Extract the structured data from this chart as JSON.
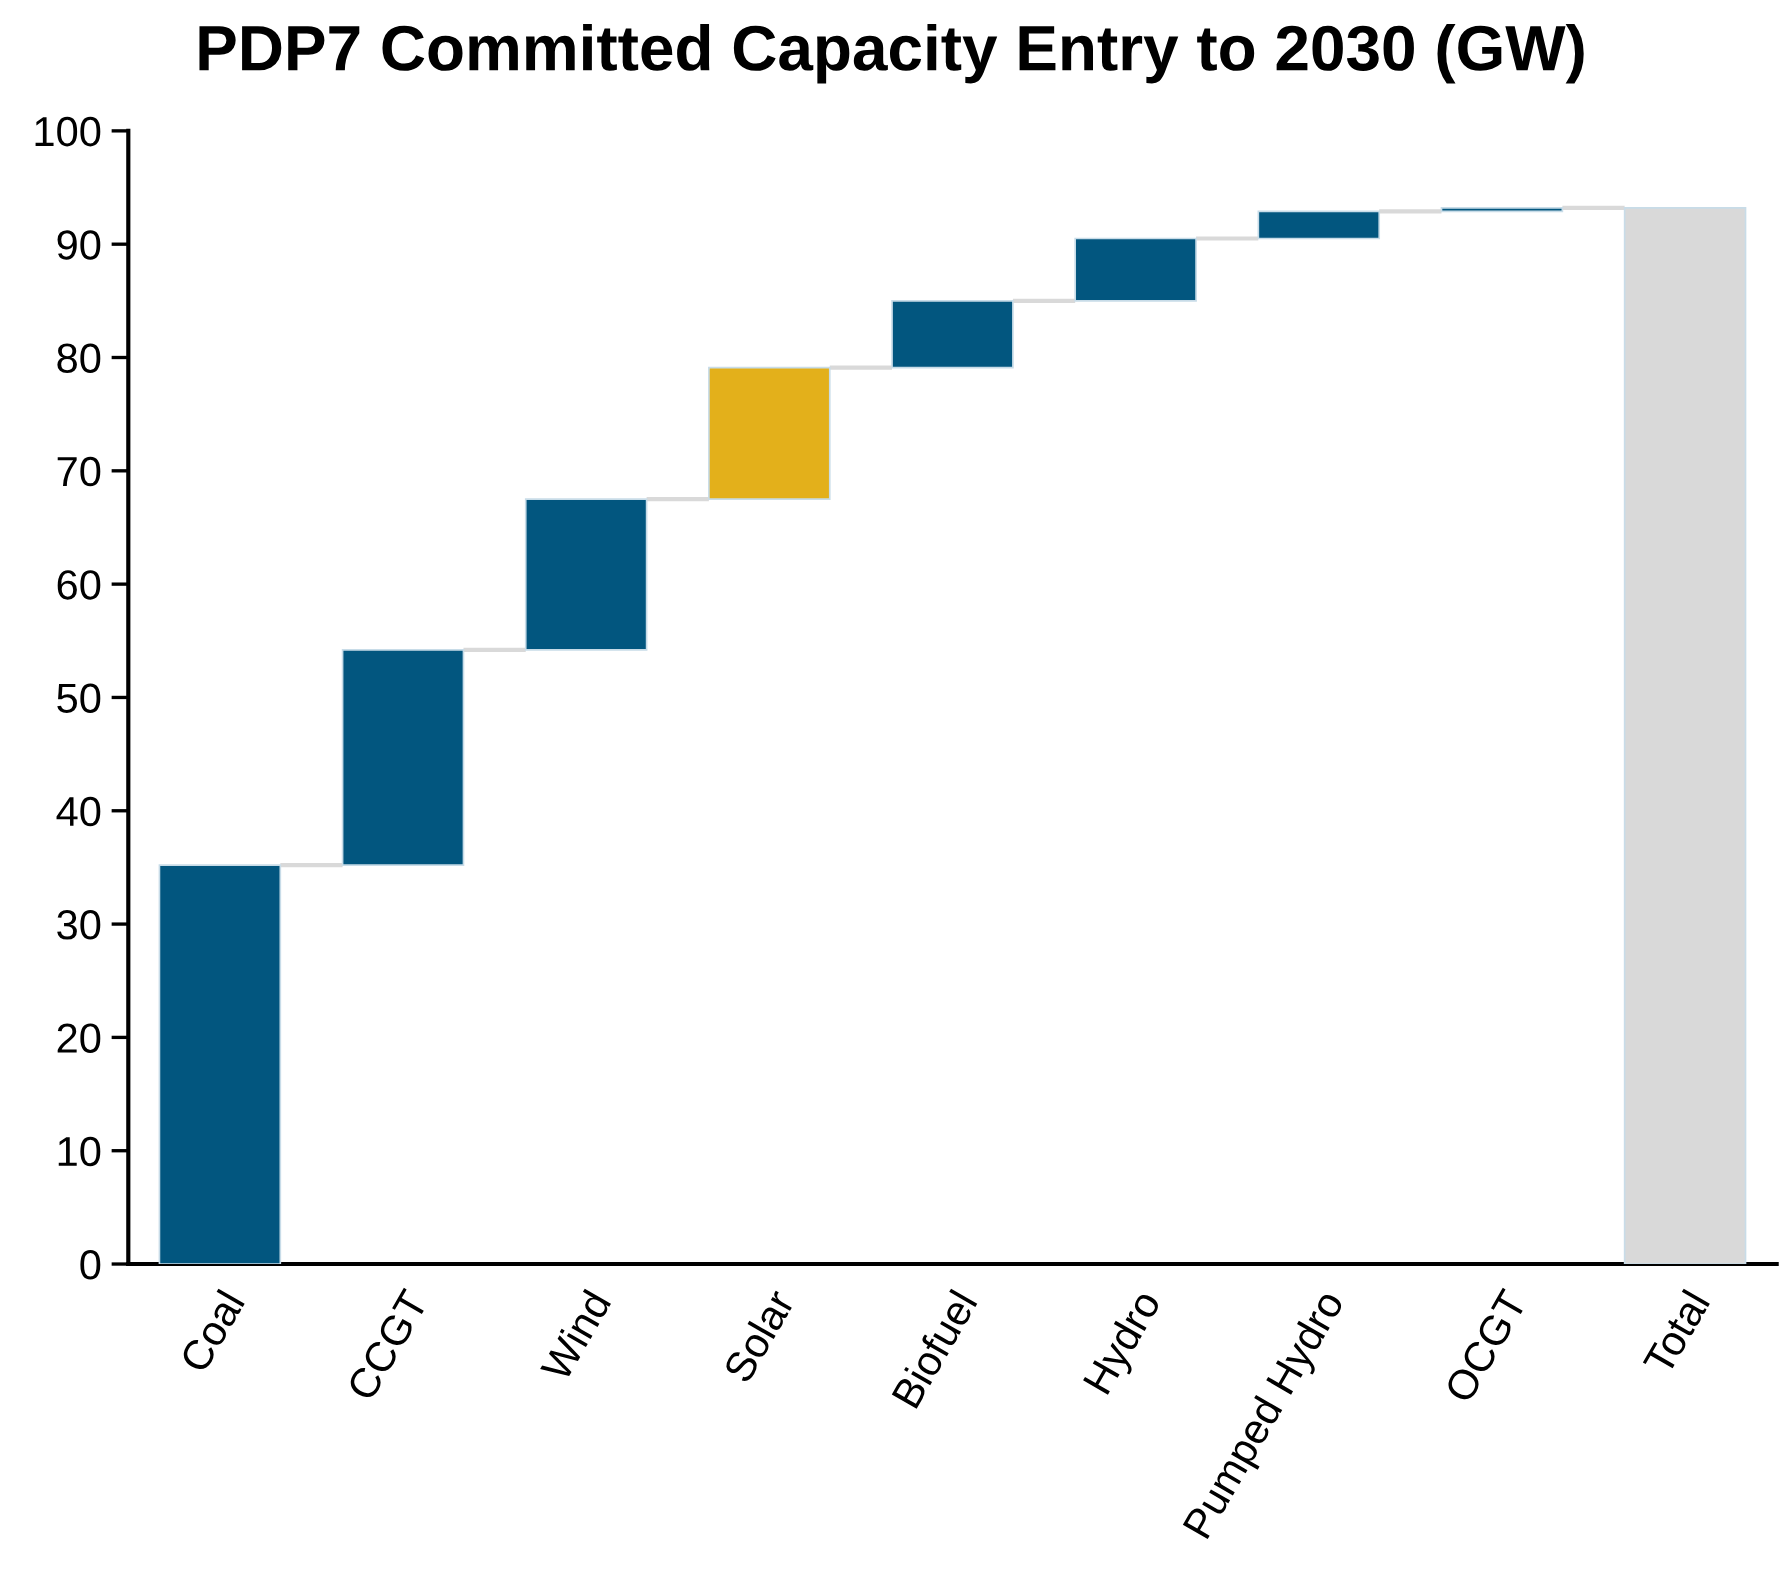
{
  "chart_data": {
    "type": "bar",
    "title": "PDP7 Committed Capacity Entry to 2030 (GW)",
    "categories": [
      "Coal",
      "CCGT",
      "Wind",
      "Solar",
      "Biofuel",
      "Hydro",
      "Pumped Hydro",
      "OCGT",
      "Total"
    ],
    "values": [
      35.2,
      19.0,
      13.3,
      11.6,
      5.9,
      5.5,
      2.4,
      0.3,
      93.2
    ],
    "base": [
      0,
      35.2,
      54.2,
      67.5,
      79.1,
      85.0,
      90.5,
      92.9,
      0
    ],
    "colors": [
      "#02567f",
      "#02567f",
      "#02567f",
      "#e3b01b",
      "#02567f",
      "#02567f",
      "#02567f",
      "#02567f",
      "#d9d9d9"
    ],
    "ylim": [
      0,
      100
    ],
    "yticks": [
      0,
      10,
      20,
      30,
      40,
      50,
      60,
      70,
      80,
      90,
      100
    ],
    "grid": false,
    "legend": false
  }
}
